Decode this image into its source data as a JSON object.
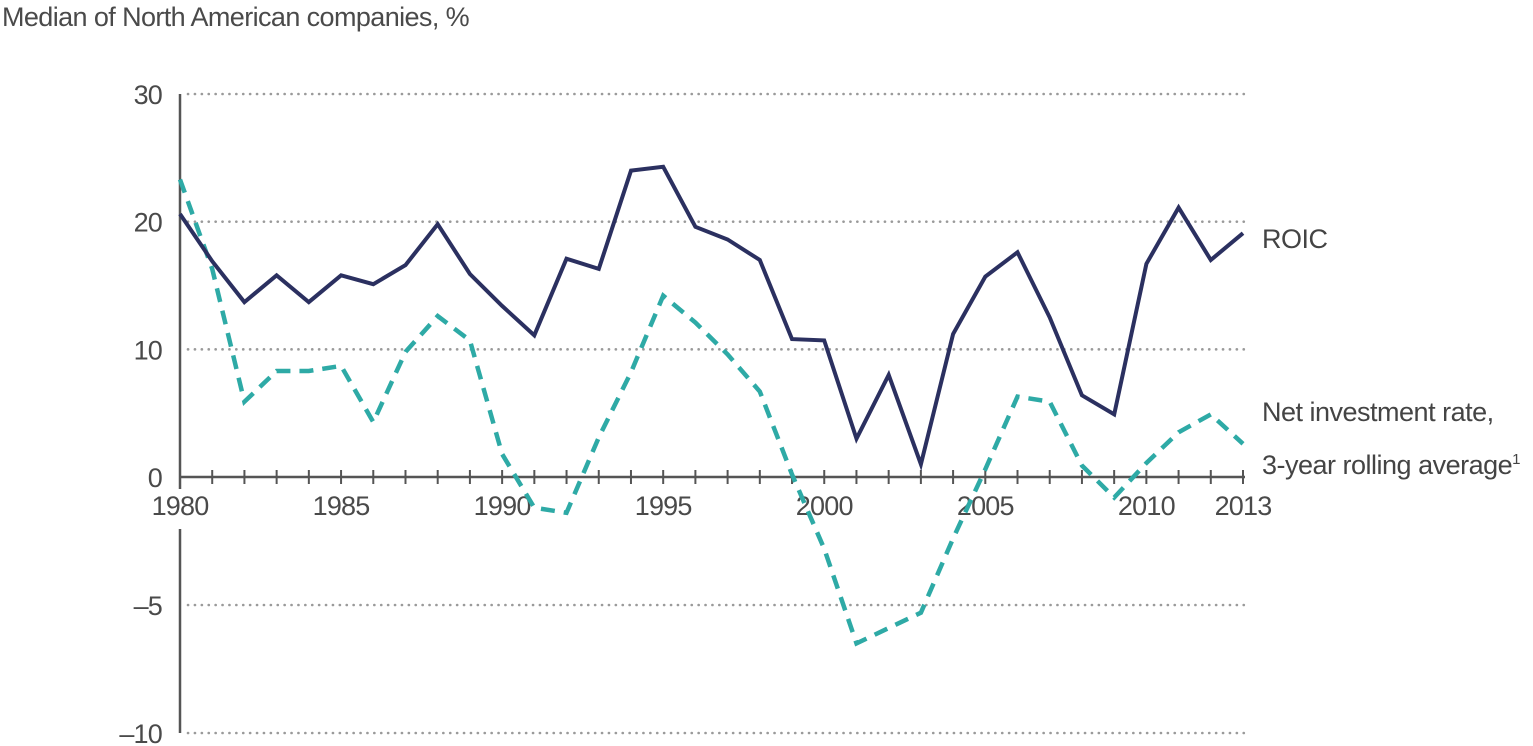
{
  "chart_data": {
    "type": "line",
    "title": "Median of North American companies, %",
    "xlabel": "",
    "ylabel": "",
    "x": [
      1980,
      1981,
      1982,
      1983,
      1984,
      1985,
      1986,
      1987,
      1988,
      1989,
      1990,
      1991,
      1992,
      1993,
      1994,
      1995,
      1996,
      1997,
      1998,
      1999,
      2000,
      2001,
      2002,
      2003,
      2004,
      2005,
      2006,
      2007,
      2008,
      2009,
      2010,
      2011,
      2012,
      2013
    ],
    "x_tick_labels": [
      "1980",
      "1985",
      "1990",
      "1995",
      "2000",
      "2005",
      "2010",
      "2013"
    ],
    "x_ticks": [
      1980,
      1985,
      1990,
      1995,
      2000,
      2005,
      2010,
      2013
    ],
    "y_tick_labels": [
      "30",
      "20",
      "10",
      "0",
      "–5",
      "–10"
    ],
    "y_ticks": [
      30,
      20,
      10,
      0,
      -5,
      -10
    ],
    "ylim": [
      -10,
      30
    ],
    "y_scale": "piecewise-linear (0 to 30 spaced at 10 per step, 0 to –10 spaced at 5 per step)",
    "grid": "horizontal dotted",
    "series": [
      {
        "name": "ROIC",
        "color": "#2b3060",
        "style": "solid",
        "values": [
          20.6,
          16.9,
          13.7,
          15.8,
          13.7,
          15.8,
          15.1,
          16.6,
          19.8,
          15.9,
          13.4,
          11.1,
          17.1,
          16.3,
          24.0,
          24.3,
          19.6,
          18.6,
          17.0,
          10.8,
          10.7,
          3.0,
          8.0,
          1.0,
          11.2,
          15.7,
          17.6,
          12.5,
          6.4,
          4.9,
          16.7,
          21.1,
          17.0,
          19.1
        ]
      },
      {
        "name": "Net investment rate, 3-year rolling average",
        "name_line1": "Net investment rate,",
        "name_line2": "3-year rolling average",
        "name_footnote": "1",
        "color": "#2eaaa6",
        "style": "dashed",
        "values": [
          23.3,
          16.3,
          5.9,
          8.3,
          8.3,
          8.7,
          4.3,
          9.8,
          12.6,
          10.7,
          1.8,
          -1.2,
          -1.4,
          3.1,
          8.2,
          14.2,
          12.1,
          9.6,
          6.7,
          0.2,
          -2.8,
          -6.5,
          -5.9,
          -5.3,
          -2.4,
          0.6,
          6.3,
          5.9,
          0.9,
          -0.8,
          1.1,
          3.5,
          4.9,
          2.6
        ]
      }
    ]
  }
}
